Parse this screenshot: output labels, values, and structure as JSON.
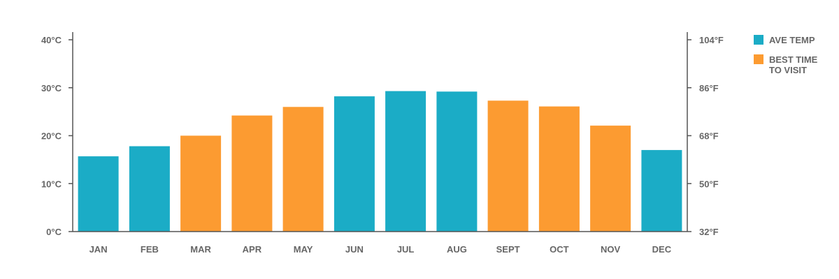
{
  "chart_data": {
    "type": "bar",
    "title": "",
    "xlabel": "",
    "ylabel": "",
    "categories": [
      "JAN",
      "FEB",
      "MAR",
      "APR",
      "MAY",
      "JUN",
      "JUL",
      "AUG",
      "SEPT",
      "OCT",
      "NOV",
      "DEC"
    ],
    "values": [
      15.7,
      17.8,
      20.0,
      24.2,
      26.0,
      28.2,
      29.3,
      29.2,
      27.3,
      26.1,
      22.1,
      17.0
    ],
    "unit": "°C",
    "ylim": [
      0,
      40
    ],
    "left_ticks": [
      "0°C",
      "10°C",
      "20°C",
      "30°C",
      "40°C"
    ],
    "left_tick_values": [
      0,
      10,
      20,
      30,
      40
    ],
    "right_ticks": [
      "32°F",
      "50°F",
      "68°F",
      "86°F",
      "104°F"
    ],
    "right_tick_values": [
      0,
      10,
      20,
      30,
      40
    ],
    "best_time": [
      false,
      false,
      true,
      true,
      true,
      false,
      false,
      false,
      true,
      true,
      true,
      false
    ],
    "grid": false,
    "legend_position": "top-right",
    "legend": [
      {
        "key": "ave_temp",
        "lines": [
          "AVE TEMP"
        ],
        "color": "#1BACC6"
      },
      {
        "key": "best_time",
        "lines": [
          "BEST TIME",
          "TO VISIT"
        ],
        "color": "#FC9B31"
      }
    ],
    "colors": {
      "ave_temp": "#1BACC6",
      "best_time": "#FC9B31",
      "axis": "#555555",
      "text": "#666666"
    }
  }
}
